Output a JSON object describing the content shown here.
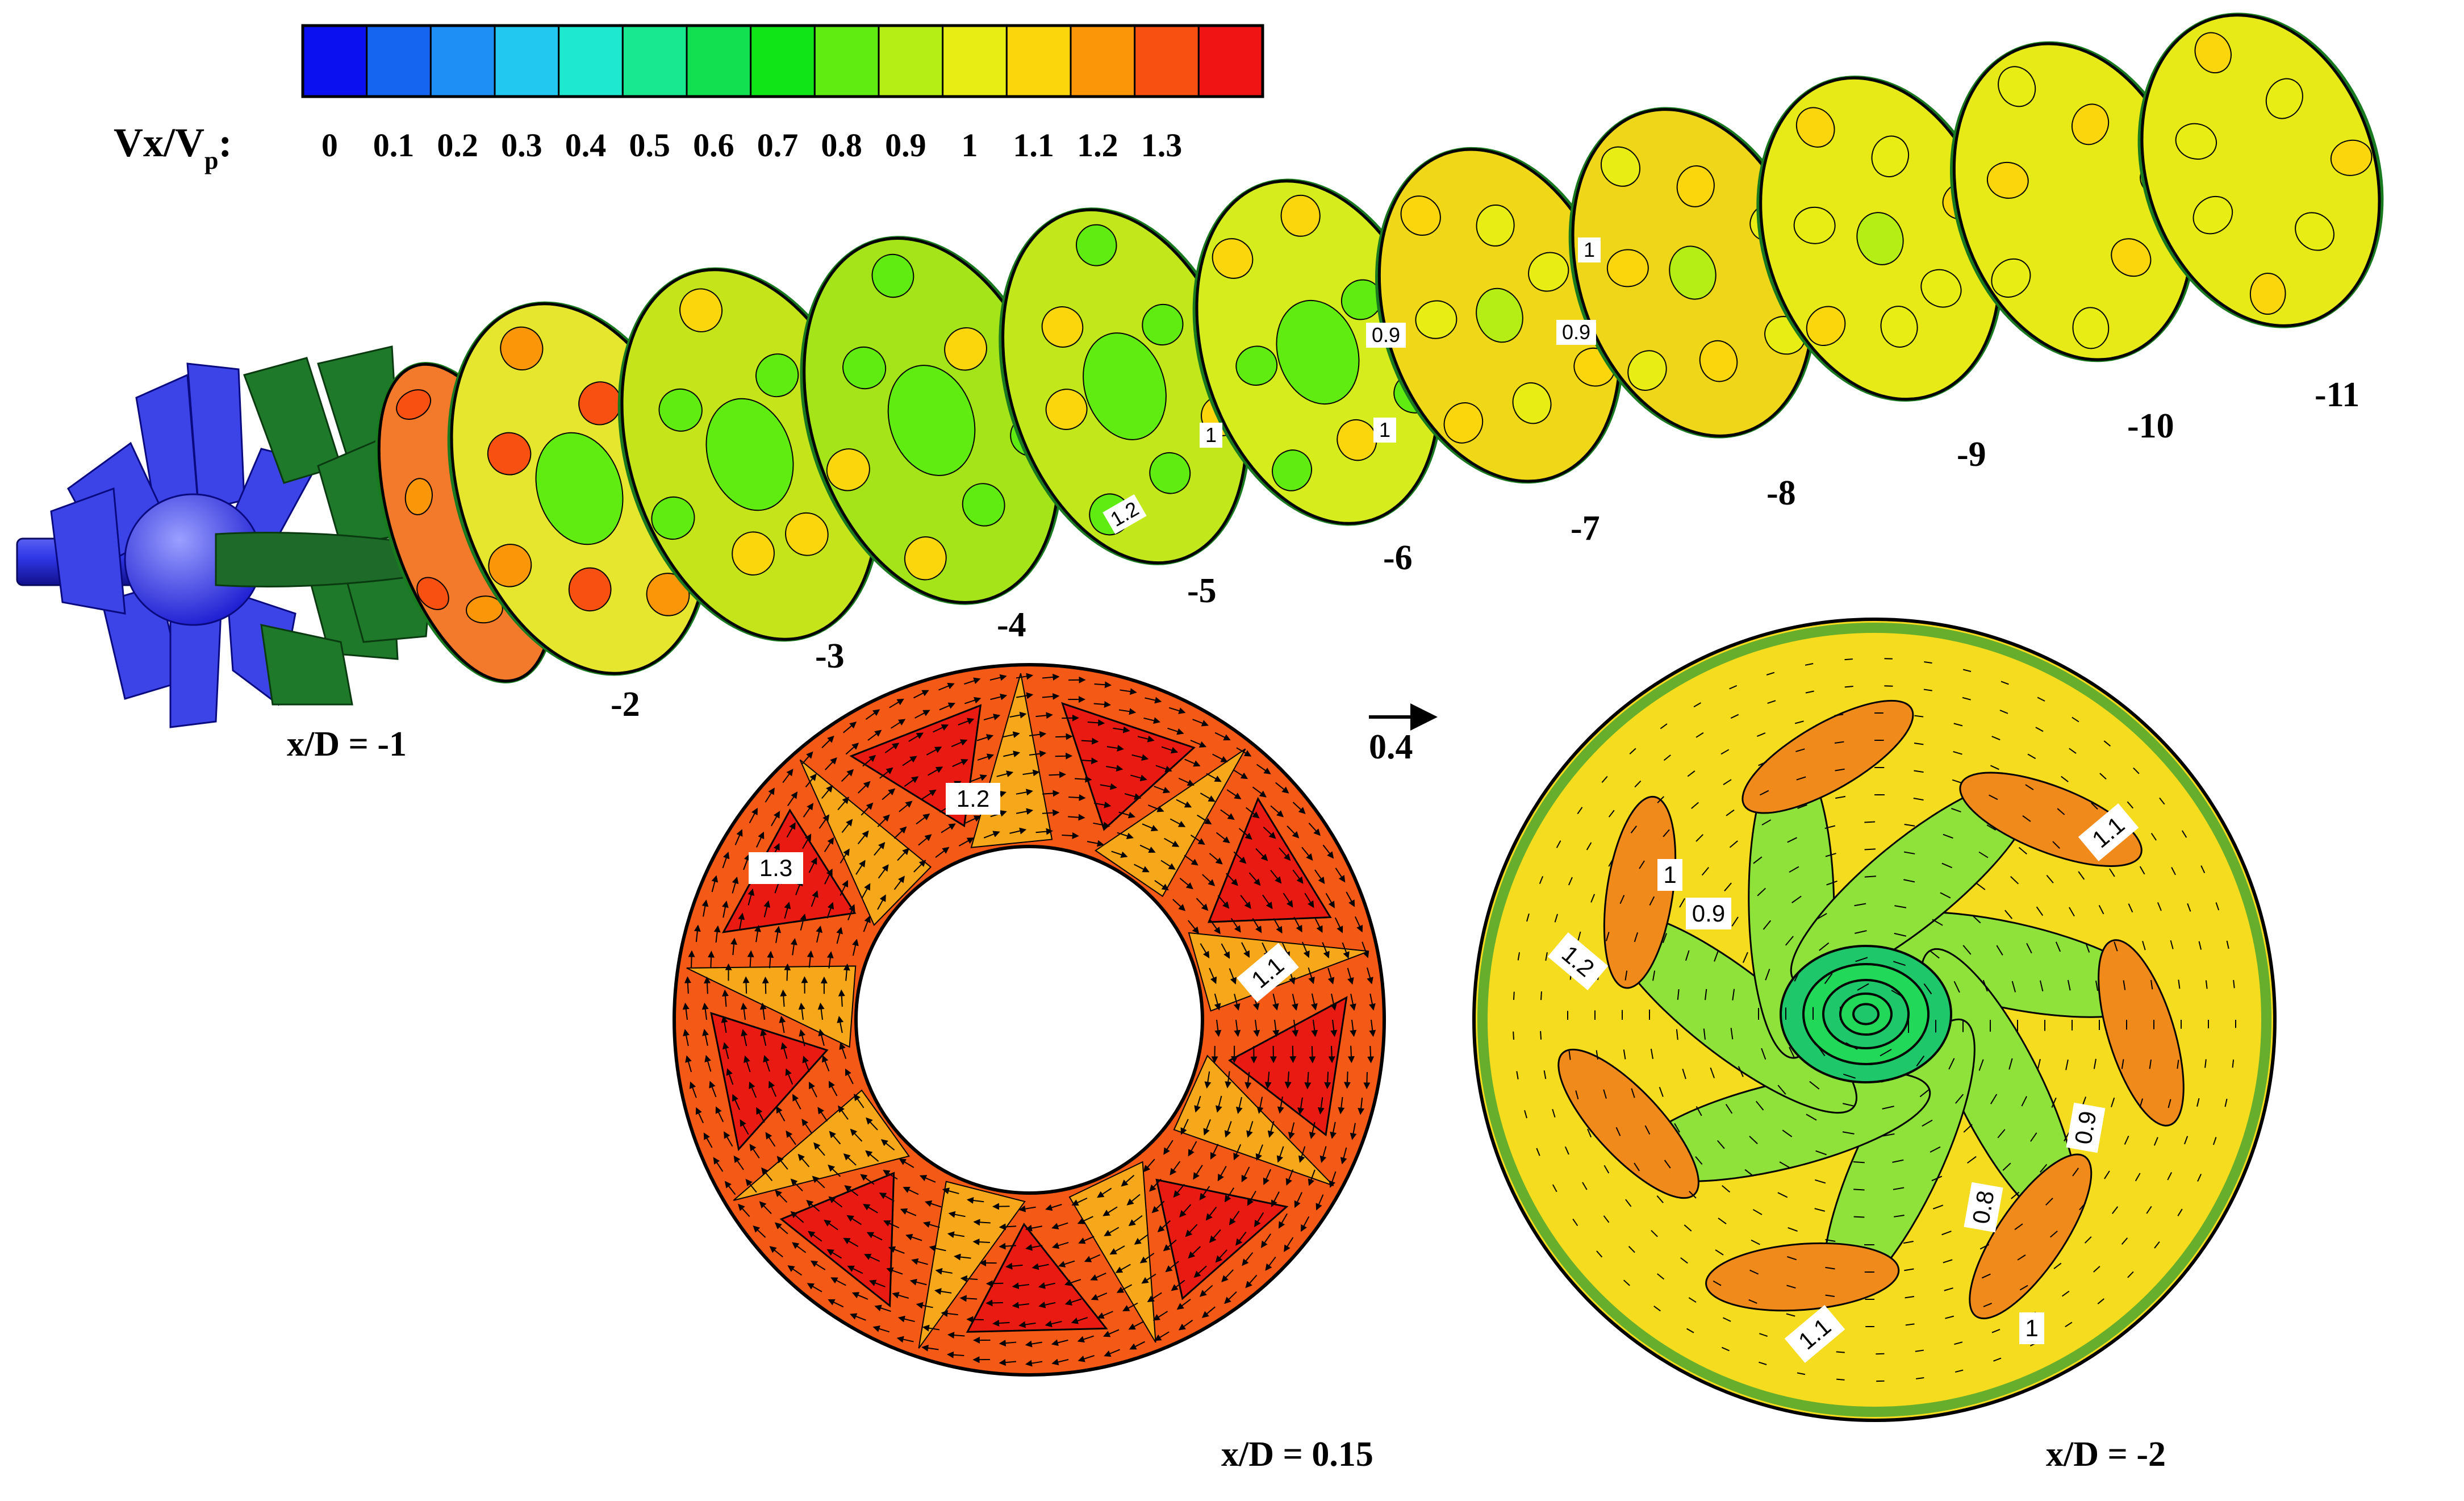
{
  "legend": {
    "symbol_main": "Vx/V",
    "symbol_sub": "p",
    "symbol_colon": ":",
    "bins": [
      {
        "color": "#0a10f0",
        "label": "0"
      },
      {
        "color": "#1565f0",
        "label": "0.1"
      },
      {
        "color": "#1e90f5",
        "label": "0.2"
      },
      {
        "color": "#22c8f0",
        "label": "0.3"
      },
      {
        "color": "#1ee8d0",
        "label": "0.4"
      },
      {
        "color": "#18e890",
        "label": "0.5"
      },
      {
        "color": "#12e050",
        "label": "0.6"
      },
      {
        "color": "#10e518",
        "label": "0.7"
      },
      {
        "color": "#60ec10",
        "label": "0.8"
      },
      {
        "color": "#b4ee14",
        "label": "0.9"
      },
      {
        "color": "#e8ee14",
        "label": "1"
      },
      {
        "color": "#fcd60c",
        "label": "1.1"
      },
      {
        "color": "#fa9608",
        "label": "1.2"
      },
      {
        "color": "#f75010",
        "label": "1.3"
      },
      {
        "color": "#f01414",
        "label": ""
      }
    ]
  },
  "sections": [
    {
      "label": "x/D = -1",
      "color": "#f27a2a"
    },
    {
      "label": "-2",
      "color": "#e7e62e"
    },
    {
      "label": "-3",
      "color": "#c6e41a"
    },
    {
      "label": "-4",
      "color": "#a6e41a"
    },
    {
      "label": "-5",
      "color": "#c2e81c"
    },
    {
      "label": "-6",
      "color": "#d6ec1c"
    },
    {
      "label": "-7",
      "color": "#f0d818"
    },
    {
      "label": "-8",
      "color": "#efd618"
    },
    {
      "label": "-9",
      "color": "#e8ea18"
    },
    {
      "label": "-10",
      "color": "#e8ea18"
    },
    {
      "label": "-11",
      "color": "#e8ea18"
    }
  ],
  "section_contour_labels": [
    "1.2",
    "1",
    "0.9",
    "1",
    "1",
    "0.9"
  ],
  "annular_plane": {
    "title": "x/D = 0.15",
    "contour_labels": [
      "1.2",
      "1.3",
      "1.1"
    ],
    "colors": {
      "base": "#f45a16",
      "hot": "#e81a12",
      "mid": "#f6a81a"
    }
  },
  "disk_plane": {
    "title": "x/D = -2",
    "contour_labels": [
      "1.1",
      "1",
      "0.9",
      "1.2",
      "0.9",
      "0.8",
      "1.1",
      "1"
    ],
    "colors": {
      "base": "#f6dc1e",
      "warm": "#f08a1a",
      "cool": "#8ee23a",
      "core": "#22d858"
    }
  },
  "reference_vector": {
    "label": "0.4"
  }
}
